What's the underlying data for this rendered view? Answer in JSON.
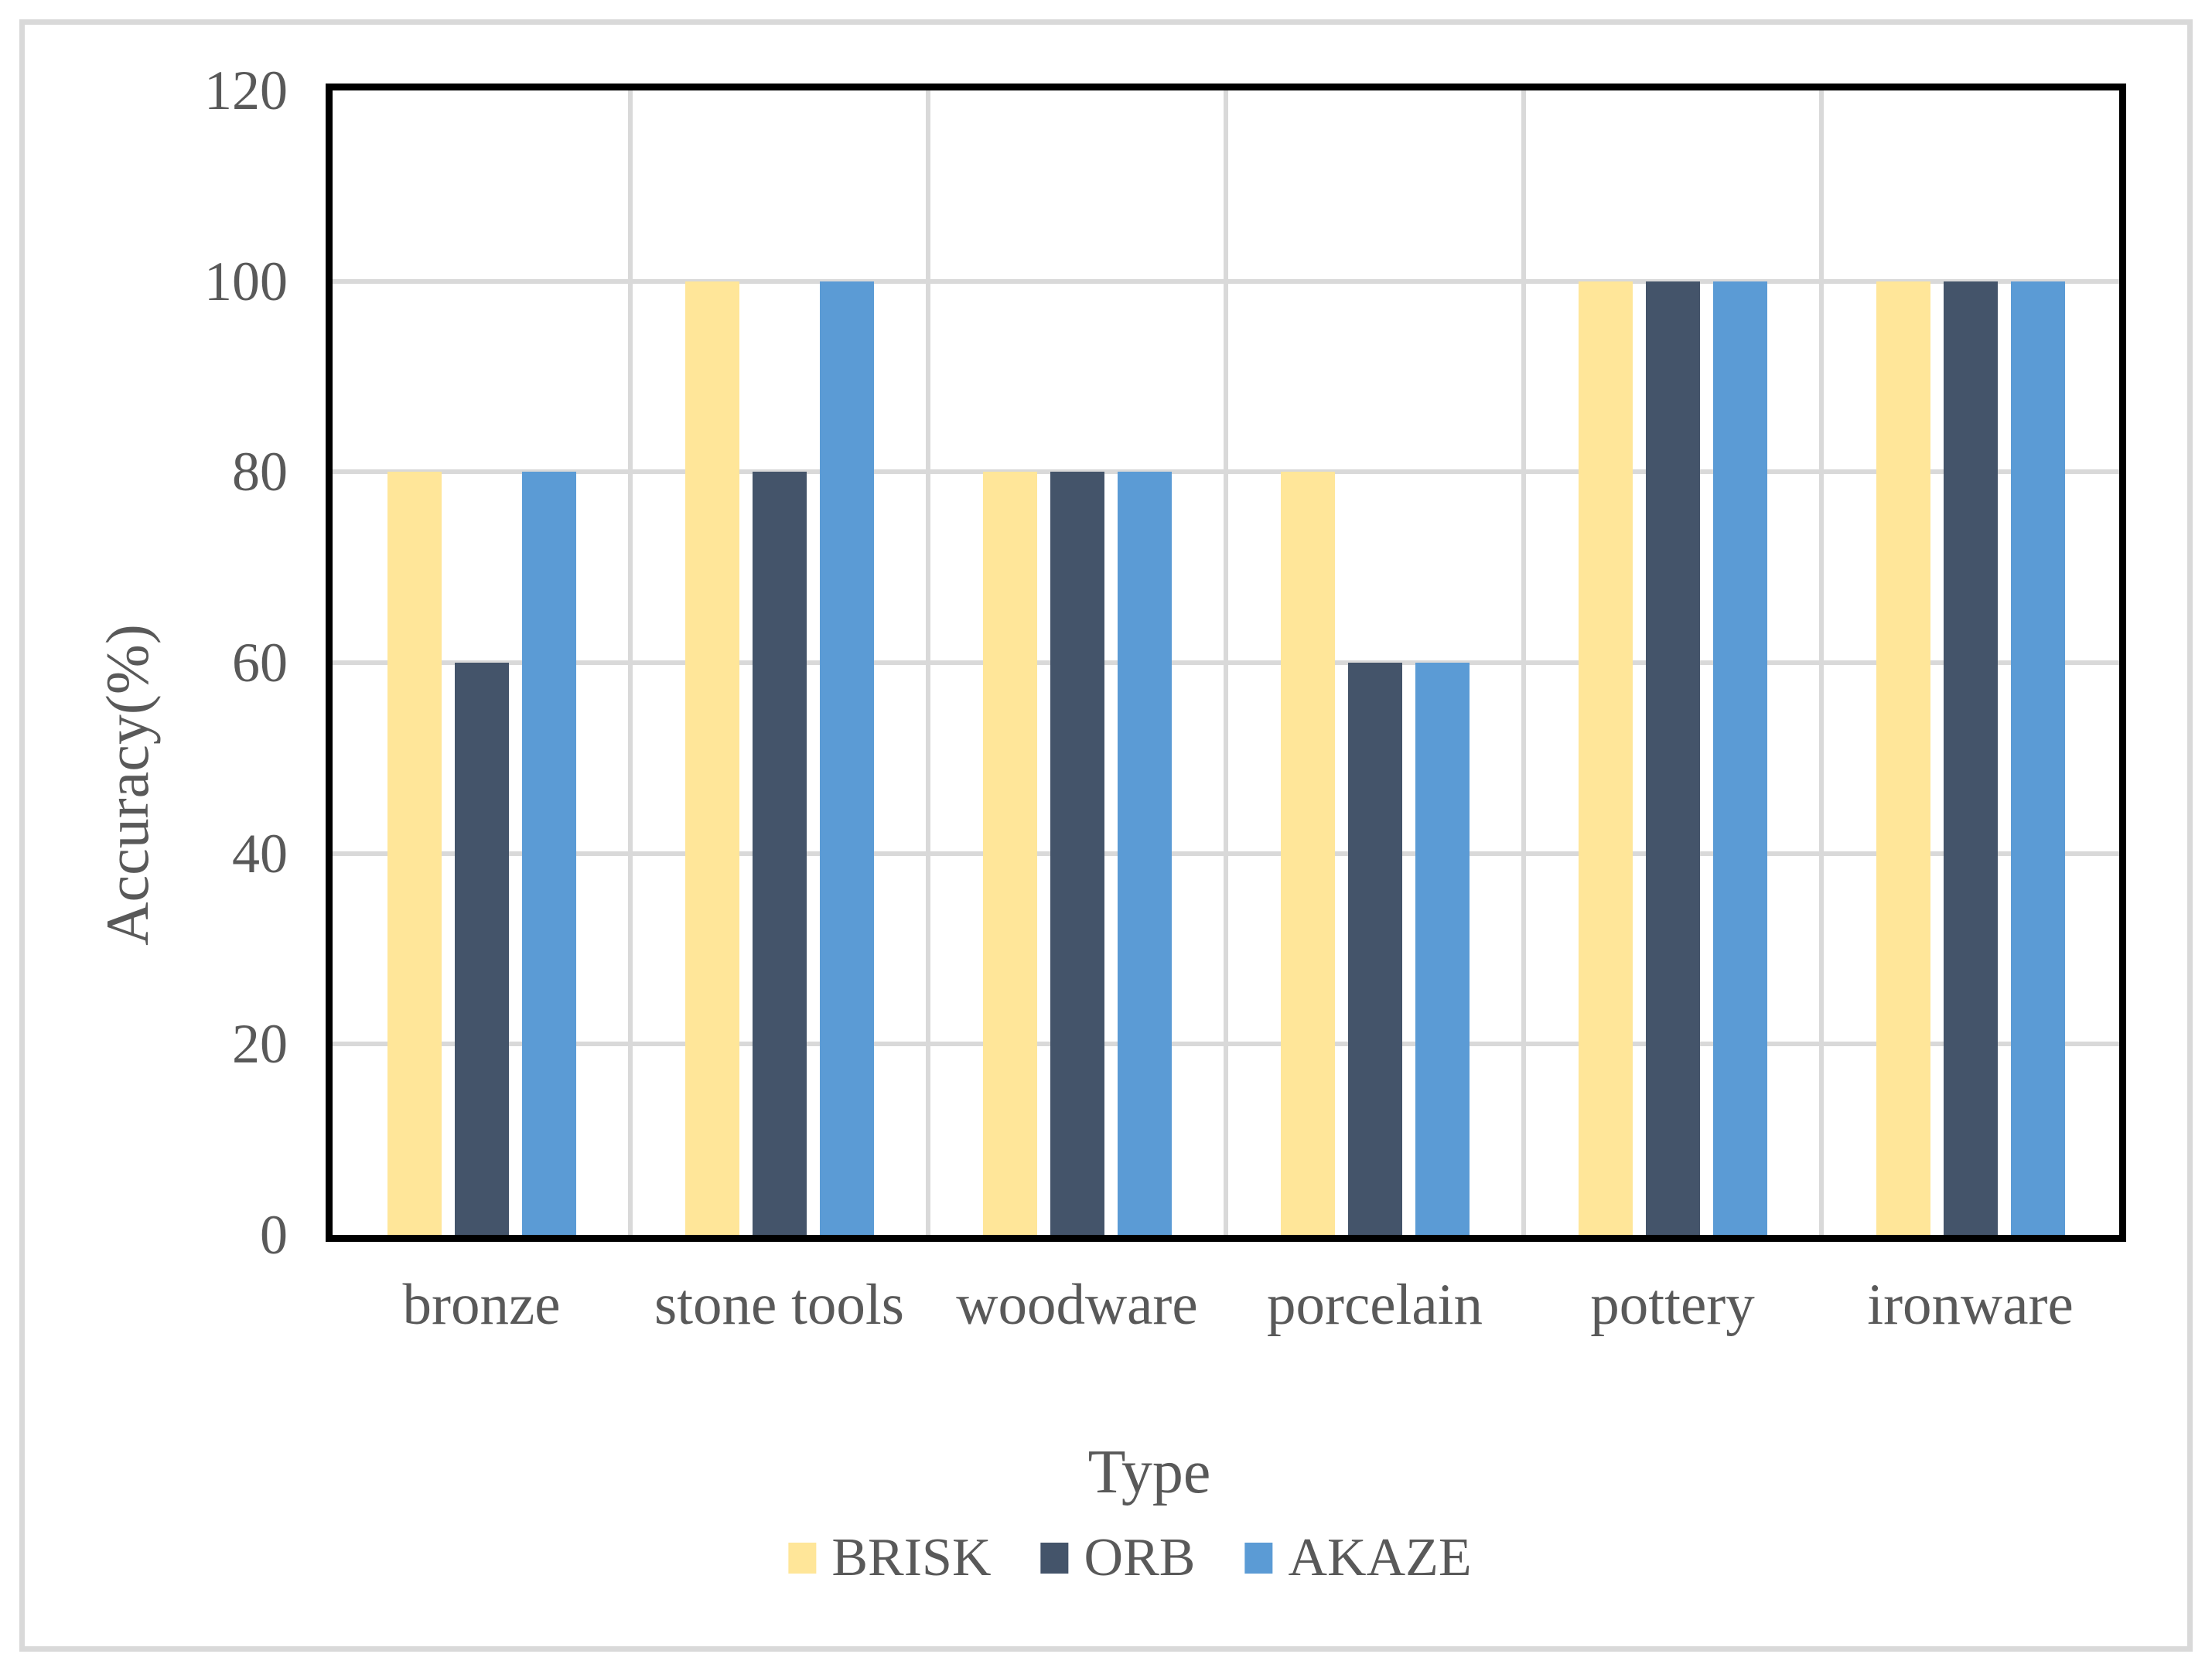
{
  "chart_data": {
    "type": "bar",
    "categories": [
      "bronze",
      "stone tools",
      "woodware",
      "porcelain",
      "pottery",
      "ironware"
    ],
    "series": [
      {
        "name": "BRISK",
        "color": "#FFE699",
        "values": [
          80,
          100,
          80,
          80,
          100,
          100
        ]
      },
      {
        "name": "ORB",
        "color": "#44546A",
        "values": [
          60,
          80,
          80,
          60,
          100,
          100
        ]
      },
      {
        "name": "AKAZE",
        "color": "#5B9BD5",
        "values": [
          80,
          100,
          80,
          60,
          100,
          100
        ]
      }
    ],
    "title": "",
    "xlabel": "Type",
    "ylabel": "Accuracy(%)",
    "ylim": [
      0,
      120
    ],
    "yticks": [
      0,
      20,
      40,
      60,
      80,
      100,
      120
    ],
    "grid": true,
    "legend_position": "bottom"
  },
  "colors": {
    "gridline": "#D9D9D9",
    "axis_text": "#595959",
    "plot_border": "#000000",
    "figure_border": "#D9D9D9",
    "background": "#FFFFFF"
  }
}
